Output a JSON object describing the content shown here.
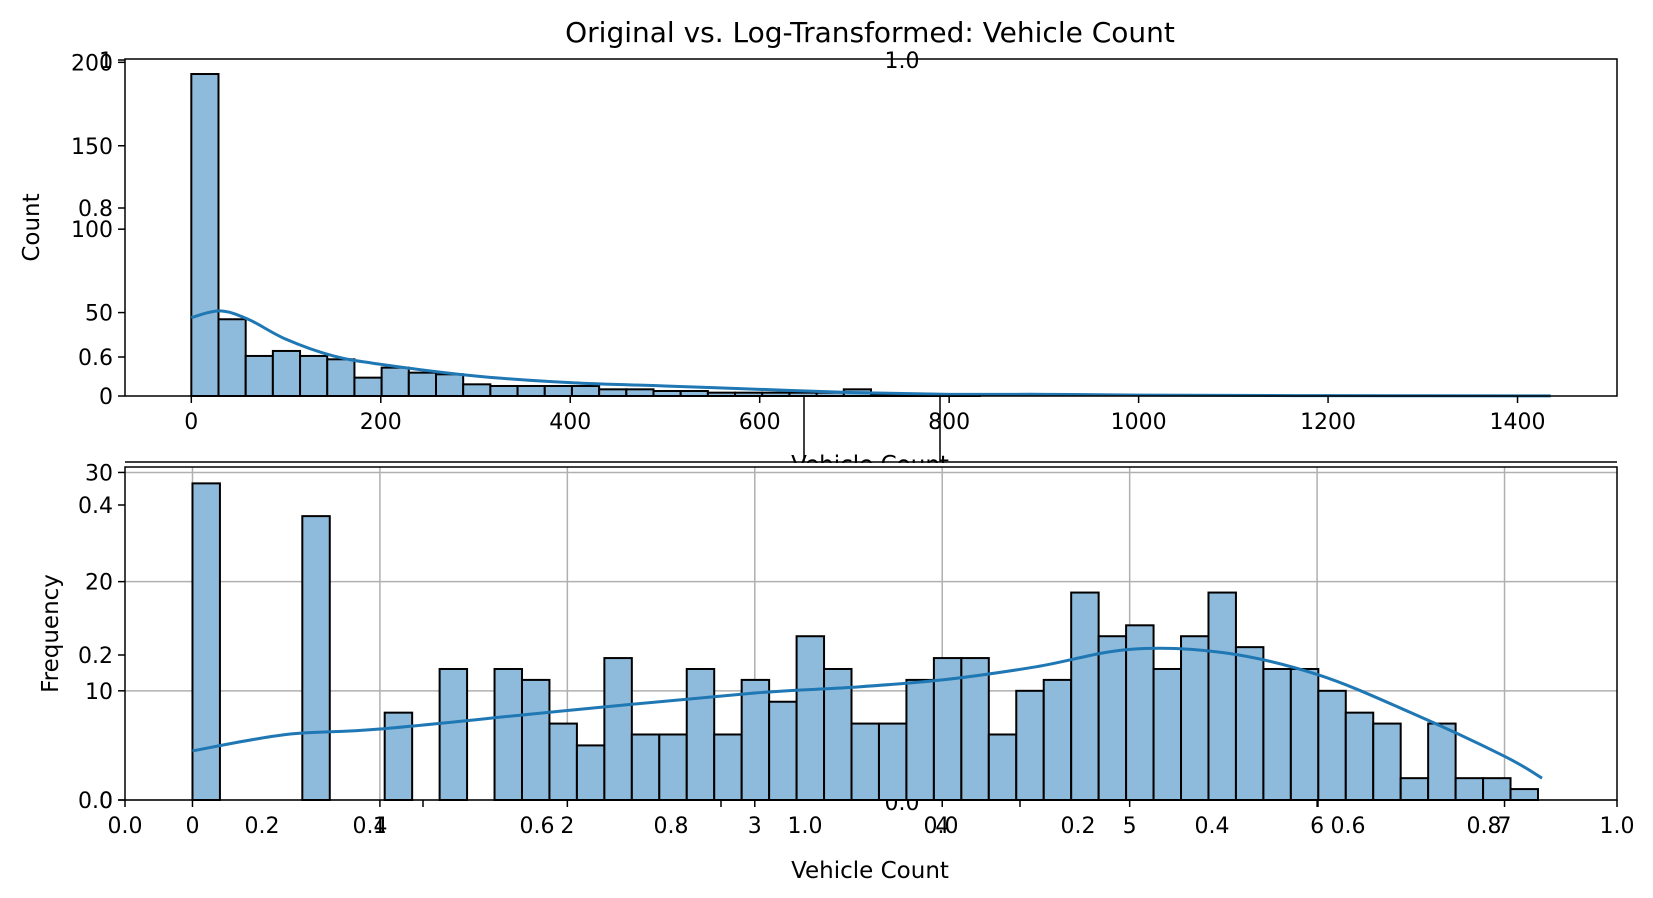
{
  "figure": {
    "title": "Original vs. Log-Transformed: Vehicle Count",
    "bar_color": "#8ebbdb",
    "line_color": "#1f77b4",
    "grid_color": "#b0b0b0"
  },
  "chart_data": [
    {
      "type": "bar",
      "title": "",
      "xlabel": "Vehicle Count",
      "ylabel": "Count",
      "xlim": [
        -70,
        1505
      ],
      "ylim": [
        0,
        202
      ],
      "xticks": [
        0,
        200,
        400,
        600,
        800,
        1000,
        1200,
        1400
      ],
      "yticks": [
        0,
        50,
        100,
        150,
        200
      ],
      "bin_start": 0,
      "bin_width": 28.7,
      "counts": [
        193,
        46,
        24,
        27,
        24,
        22,
        11,
        17,
        14,
        13,
        7,
        6,
        6,
        6,
        6,
        4,
        4,
        3,
        3,
        2,
        2,
        2,
        2,
        2,
        4,
        1,
        1,
        1,
        1,
        0,
        0,
        0,
        0,
        0,
        0,
        0,
        0,
        0,
        0,
        0,
        0,
        0,
        0,
        0,
        0,
        0,
        0,
        0,
        0,
        0
      ],
      "kde_x": [
        0,
        30,
        60,
        100,
        150,
        200,
        300,
        400,
        500,
        600,
        700,
        800,
        900,
        1000,
        1200,
        1435
      ],
      "kde_y": [
        47,
        51,
        46,
        34,
        24,
        19,
        12,
        8,
        6,
        4,
        2,
        1,
        1,
        0.5,
        0.2,
        0.1
      ],
      "grid": false,
      "extra_axis": {
        "yticks": [
          0.6,
          0.8,
          1.0
        ],
        "top_label": "1.0"
      }
    },
    {
      "type": "bar",
      "title": "",
      "xlabel": "Vehicle Count",
      "ylabel": "Frequency",
      "xlim": [
        -0.36,
        7.6
      ],
      "ylim": [
        0,
        30.5
      ],
      "xticks": [
        0,
        1,
        2,
        3,
        4,
        5,
        6,
        7
      ],
      "yticks": [
        0,
        10,
        20,
        30
      ],
      "bin_start": 0,
      "bin_width": 0.1465,
      "counts": [
        29,
        0,
        0,
        0,
        26,
        0,
        0,
        8,
        0,
        12,
        0,
        12,
        11,
        7,
        5,
        13,
        6,
        6,
        12,
        6,
        11,
        9,
        15,
        12,
        7,
        7,
        11,
        13,
        13,
        6,
        10,
        11,
        19,
        15,
        16,
        12,
        15,
        19,
        14,
        12,
        12,
        10,
        8,
        7,
        2,
        7,
        2,
        2,
        1
      ],
      "kde_x": [
        0,
        0.5,
        1,
        2,
        3,
        3.5,
        4,
        4.5,
        5,
        5.5,
        6,
        6.5,
        7,
        7.2
      ],
      "kde_y": [
        4.5,
        6,
        6.5,
        8.2,
        9.8,
        10.3,
        11,
        12.2,
        13.8,
        13.5,
        11.5,
        8,
        4,
        2
      ],
      "grid": true,
      "extra_axis": {
        "xticks": [
          "0.0",
          "0.2",
          "0.4",
          "0.6",
          "0.8",
          "1.0"
        ],
        "yticks": [
          "0.0",
          "0.2",
          "0.4"
        ],
        "x2ticks": [
          "0.0",
          "0.2",
          "0.4",
          "0.6",
          "0.8",
          "1.0"
        ],
        "center_label": "0.0"
      }
    }
  ]
}
